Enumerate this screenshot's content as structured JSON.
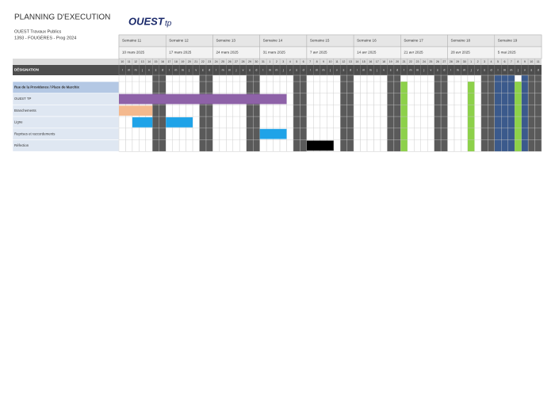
{
  "header": {
    "title": "PLANNING D'EXECUTION",
    "company": "OUEST Travaux Publics",
    "reference": "1393 - FOUGÈRES - Prog 2024",
    "logo": "OUEST",
    "logo_suffix": "tp"
  },
  "table": {
    "designation_label": "DÉSIGNATION",
    "day_letters": [
      "l",
      "m",
      "m",
      "j",
      "v",
      "s",
      "d"
    ],
    "weeks": [
      {
        "label": "Semaine 11",
        "date": "10 mars 2025",
        "days": [
          10,
          11,
          12,
          13,
          14,
          15,
          16
        ]
      },
      {
        "label": "Semaine 12",
        "date": "17 mars 2025",
        "days": [
          17,
          18,
          19,
          20,
          21,
          22,
          23
        ]
      },
      {
        "label": "Semaine 13",
        "date": "24 mars 2025",
        "days": [
          24,
          25,
          26,
          27,
          28,
          29,
          30
        ]
      },
      {
        "label": "Semaine 14",
        "date": "31 mars 2025",
        "days": [
          31,
          1,
          2,
          3,
          4,
          5,
          6
        ]
      },
      {
        "label": "Semaine 15",
        "date": "7 avr 2025",
        "days": [
          7,
          8,
          9,
          10,
          11,
          12,
          13
        ]
      },
      {
        "label": "Semaine 16",
        "date": "14 avr 2025",
        "days": [
          14,
          15,
          16,
          17,
          18,
          19,
          20
        ]
      },
      {
        "label": "Semaine 17",
        "date": "21 avr 2025",
        "days": [
          21,
          22,
          23,
          24,
          25,
          26,
          27
        ]
      },
      {
        "label": "Semaine 18",
        "date": "28 avr 2025",
        "days": [
          28,
          29,
          30,
          1,
          2,
          3,
          4
        ]
      },
      {
        "label": "Semaine 19",
        "date": "5 mai 2025",
        "days": [
          5,
          6,
          7,
          8,
          9,
          10,
          11
        ]
      }
    ],
    "holidays": [
      42,
      52,
      59
    ],
    "bridge_days": [
      56,
      57,
      58,
      60
    ],
    "rows": [
      {
        "label": "Rue de la Providence / Place de Marchix",
        "section": true,
        "bars": []
      },
      {
        "label": "OUEST TP",
        "color": "#8e62a8",
        "bars": [
          [
            0,
            25
          ]
        ]
      },
      {
        "label": "Branchements",
        "color": "#f4b98e",
        "bars": [
          [
            0,
            5
          ]
        ]
      },
      {
        "label": "Ligne",
        "color": "#1fa3e8",
        "bars": [
          [
            2,
            5
          ],
          [
            7,
            11
          ]
        ]
      },
      {
        "label": "Reprises et raccordements",
        "color": "#1fa3e8",
        "bars": [
          [
            21,
            25
          ]
        ]
      },
      {
        "label": "Réfection",
        "color": "#000000",
        "bars": [
          [
            28,
            32
          ]
        ]
      }
    ]
  }
}
